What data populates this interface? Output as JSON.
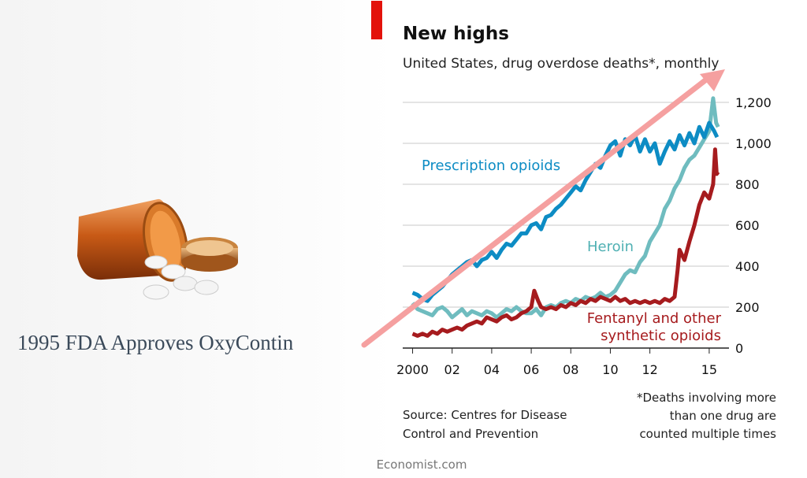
{
  "left_panel": {
    "caption": "1995 FDA Approves OxyContin",
    "image_icon": "pill-bottle-icon"
  },
  "accent_color": "#e3120b",
  "arrow_color": "#f5a0a0",
  "chart_data": {
    "type": "line",
    "title": "New highs",
    "subtitle": "United States, drug overdose deaths*, monthly",
    "x_tick_labels": [
      "2000",
      "02",
      "04",
      "06",
      "08",
      "10",
      "12",
      "15"
    ],
    "x_tick_years": [
      2000,
      2002,
      2004,
      2006,
      2008,
      2010,
      2012,
      2015
    ],
    "xlim": [
      1999.5,
      2016
    ],
    "ylim": [
      0,
      1250
    ],
    "y_ticks": [
      0,
      200,
      400,
      600,
      800,
      1000,
      1200
    ],
    "y_tick_labels": [
      "0",
      "200",
      "400",
      "600",
      "800",
      "1,000",
      "1,200"
    ],
    "grid": true,
    "series": [
      {
        "name": "Prescription opioids",
        "color": "#0d8cc4",
        "points": [
          [
            2000,
            270
          ],
          [
            2000.25,
            260
          ],
          [
            2000.5,
            240
          ],
          [
            2000.75,
            230
          ],
          [
            2001,
            260
          ],
          [
            2001.25,
            280
          ],
          [
            2001.5,
            300
          ],
          [
            2001.75,
            330
          ],
          [
            2002,
            360
          ],
          [
            2002.25,
            380
          ],
          [
            2002.5,
            400
          ],
          [
            2002.75,
            420
          ],
          [
            2003,
            430
          ],
          [
            2003.25,
            400
          ],
          [
            2003.5,
            430
          ],
          [
            2003.75,
            440
          ],
          [
            2004,
            470
          ],
          [
            2004.25,
            440
          ],
          [
            2004.5,
            480
          ],
          [
            2004.75,
            510
          ],
          [
            2005,
            500
          ],
          [
            2005.25,
            530
          ],
          [
            2005.5,
            560
          ],
          [
            2005.75,
            560
          ],
          [
            2006,
            600
          ],
          [
            2006.25,
            610
          ],
          [
            2006.5,
            580
          ],
          [
            2006.75,
            640
          ],
          [
            2007,
            650
          ],
          [
            2007.25,
            680
          ],
          [
            2007.5,
            700
          ],
          [
            2007.75,
            730
          ],
          [
            2008,
            760
          ],
          [
            2008.25,
            790
          ],
          [
            2008.5,
            770
          ],
          [
            2008.75,
            820
          ],
          [
            2009,
            860
          ],
          [
            2009.25,
            900
          ],
          [
            2009.5,
            880
          ],
          [
            2009.75,
            940
          ],
          [
            2010,
            990
          ],
          [
            2010.25,
            1010
          ],
          [
            2010.5,
            940
          ],
          [
            2010.75,
            1020
          ],
          [
            2011,
            990
          ],
          [
            2011.25,
            1040
          ],
          [
            2011.5,
            960
          ],
          [
            2011.75,
            1020
          ],
          [
            2012,
            960
          ],
          [
            2012.25,
            1000
          ],
          [
            2012.5,
            900
          ],
          [
            2012.75,
            960
          ],
          [
            2013,
            1010
          ],
          [
            2013.25,
            970
          ],
          [
            2013.5,
            1040
          ],
          [
            2013.75,
            990
          ],
          [
            2014,
            1050
          ],
          [
            2014.25,
            1000
          ],
          [
            2014.5,
            1080
          ],
          [
            2014.75,
            1030
          ],
          [
            2015,
            1100
          ],
          [
            2015.25,
            1060
          ],
          [
            2015.4,
            1030
          ]
        ]
      },
      {
        "name": "Heroin",
        "color": "#6fbcbf",
        "points": [
          [
            2000,
            220
          ],
          [
            2000.25,
            190
          ],
          [
            2000.5,
            180
          ],
          [
            2000.75,
            170
          ],
          [
            2001,
            160
          ],
          [
            2001.25,
            190
          ],
          [
            2001.5,
            200
          ],
          [
            2001.75,
            180
          ],
          [
            2002,
            150
          ],
          [
            2002.25,
            170
          ],
          [
            2002.5,
            190
          ],
          [
            2002.75,
            160
          ],
          [
            2003,
            180
          ],
          [
            2003.25,
            170
          ],
          [
            2003.5,
            160
          ],
          [
            2003.75,
            180
          ],
          [
            2004,
            170
          ],
          [
            2004.25,
            150
          ],
          [
            2004.5,
            170
          ],
          [
            2004.75,
            190
          ],
          [
            2005,
            180
          ],
          [
            2005.25,
            200
          ],
          [
            2005.5,
            180
          ],
          [
            2005.75,
            170
          ],
          [
            2006,
            170
          ],
          [
            2006.25,
            190
          ],
          [
            2006.5,
            160
          ],
          [
            2006.75,
            200
          ],
          [
            2007,
            210
          ],
          [
            2007.25,
            200
          ],
          [
            2007.5,
            220
          ],
          [
            2007.75,
            230
          ],
          [
            2008,
            220
          ],
          [
            2008.25,
            240
          ],
          [
            2008.5,
            230
          ],
          [
            2008.75,
            250
          ],
          [
            2009,
            240
          ],
          [
            2009.25,
            250
          ],
          [
            2009.5,
            270
          ],
          [
            2009.75,
            250
          ],
          [
            2010,
            260
          ],
          [
            2010.25,
            280
          ],
          [
            2010.5,
            320
          ],
          [
            2010.75,
            360
          ],
          [
            2011,
            380
          ],
          [
            2011.25,
            370
          ],
          [
            2011.5,
            420
          ],
          [
            2011.75,
            450
          ],
          [
            2012,
            520
          ],
          [
            2012.25,
            560
          ],
          [
            2012.5,
            600
          ],
          [
            2012.75,
            680
          ],
          [
            2013,
            720
          ],
          [
            2013.25,
            780
          ],
          [
            2013.5,
            820
          ],
          [
            2013.75,
            880
          ],
          [
            2014,
            920
          ],
          [
            2014.25,
            940
          ],
          [
            2014.5,
            980
          ],
          [
            2014.75,
            1020
          ],
          [
            2015,
            1060
          ],
          [
            2015.2,
            1220
          ],
          [
            2015.35,
            1100
          ],
          [
            2015.45,
            1080
          ]
        ]
      },
      {
        "name": "Fentanyl and other synthetic opioids",
        "color": "#a61b1e",
        "points": [
          [
            2000,
            70
          ],
          [
            2000.25,
            60
          ],
          [
            2000.5,
            70
          ],
          [
            2000.75,
            60
          ],
          [
            2001,
            80
          ],
          [
            2001.25,
            70
          ],
          [
            2001.5,
            90
          ],
          [
            2001.75,
            80
          ],
          [
            2002,
            90
          ],
          [
            2002.25,
            100
          ],
          [
            2002.5,
            90
          ],
          [
            2002.75,
            110
          ],
          [
            2003,
            120
          ],
          [
            2003.25,
            130
          ],
          [
            2003.5,
            120
          ],
          [
            2003.75,
            150
          ],
          [
            2004,
            140
          ],
          [
            2004.25,
            130
          ],
          [
            2004.5,
            150
          ],
          [
            2004.75,
            160
          ],
          [
            2005,
            140
          ],
          [
            2005.25,
            150
          ],
          [
            2005.5,
            170
          ],
          [
            2005.75,
            180
          ],
          [
            2006,
            200
          ],
          [
            2006.15,
            280
          ],
          [
            2006.35,
            230
          ],
          [
            2006.5,
            200
          ],
          [
            2006.75,
            190
          ],
          [
            2007,
            200
          ],
          [
            2007.25,
            190
          ],
          [
            2007.5,
            210
          ],
          [
            2007.75,
            200
          ],
          [
            2008,
            220
          ],
          [
            2008.25,
            210
          ],
          [
            2008.5,
            230
          ],
          [
            2008.75,
            220
          ],
          [
            2009,
            240
          ],
          [
            2009.25,
            230
          ],
          [
            2009.5,
            250
          ],
          [
            2009.75,
            240
          ],
          [
            2010,
            230
          ],
          [
            2010.25,
            250
          ],
          [
            2010.5,
            230
          ],
          [
            2010.75,
            240
          ],
          [
            2011,
            220
          ],
          [
            2011.25,
            230
          ],
          [
            2011.5,
            220
          ],
          [
            2011.75,
            230
          ],
          [
            2012,
            220
          ],
          [
            2012.25,
            230
          ],
          [
            2012.5,
            220
          ],
          [
            2012.75,
            240
          ],
          [
            2013,
            230
          ],
          [
            2013.25,
            250
          ],
          [
            2013.4,
            380
          ],
          [
            2013.5,
            480
          ],
          [
            2013.75,
            430
          ],
          [
            2014,
            520
          ],
          [
            2014.25,
            600
          ],
          [
            2014.5,
            700
          ],
          [
            2014.75,
            760
          ],
          [
            2015,
            730
          ],
          [
            2015.2,
            800
          ],
          [
            2015.3,
            970
          ],
          [
            2015.38,
            850
          ],
          [
            2015.45,
            860
          ]
        ]
      }
    ],
    "series_labels": [
      {
        "lines": [
          "Prescription opioids"
        ],
        "color": "#0d8cc4"
      },
      {
        "lines": [
          "Heroin"
        ],
        "color": "#4fb0b3"
      },
      {
        "lines": [
          "Fentanyl and other",
          "synthetic opioids"
        ],
        "color": "#a61b1e"
      }
    ],
    "source": [
      "Source: Centres for Disease",
      "Control and Prevention"
    ],
    "footnote": [
      "*Deaths involving more",
      "than one drug are",
      "counted multiple times"
    ],
    "credit": "Economist.com"
  }
}
